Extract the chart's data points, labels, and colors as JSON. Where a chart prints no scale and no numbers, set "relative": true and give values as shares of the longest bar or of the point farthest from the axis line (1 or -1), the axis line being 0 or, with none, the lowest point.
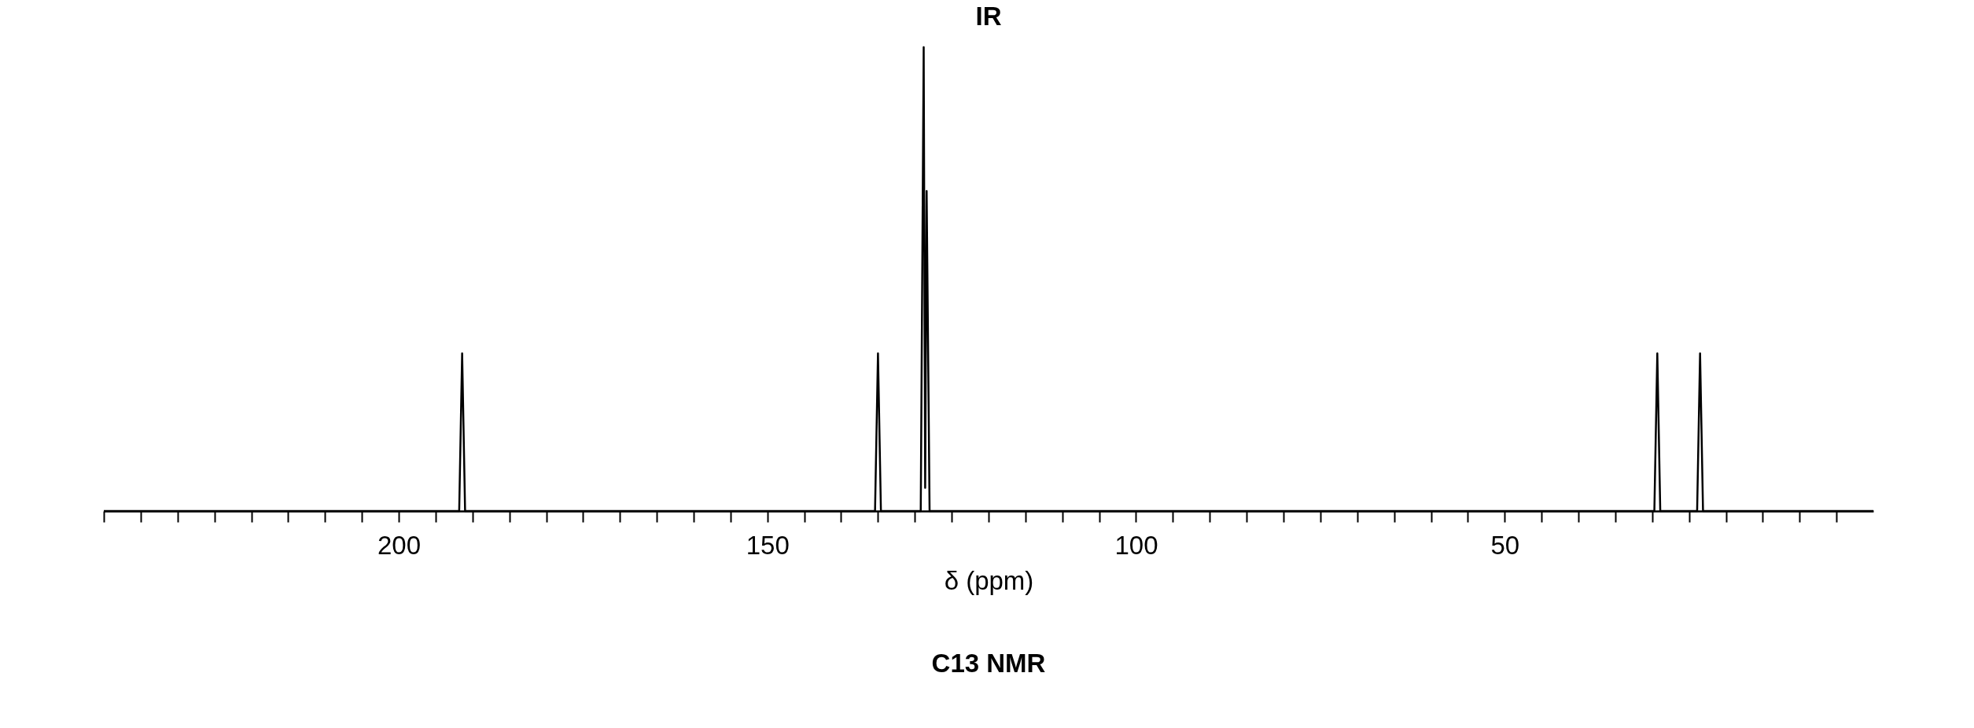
{
  "chart_data": {
    "type": "line",
    "title": "IR",
    "xlabel": "δ (ppm)",
    "annotations": [
      "C13 NMR"
    ],
    "relative": true,
    "grid": false,
    "marker": "none",
    "line_style": "solid",
    "xlim": [
      240,
      0
    ],
    "xticks": [
      {
        "value": 240,
        "label": null
      },
      {
        "value": 235,
        "label": null
      },
      {
        "value": 230,
        "label": null
      },
      {
        "value": 225,
        "label": null
      },
      {
        "value": 220,
        "label": null
      },
      {
        "value": 215,
        "label": null
      },
      {
        "value": 210,
        "label": null
      },
      {
        "value": 205,
        "label": null
      },
      200,
      {
        "value": 195,
        "label": null
      },
      {
        "value": 190,
        "label": null
      },
      {
        "value": 185,
        "label": null
      },
      {
        "value": 180,
        "label": null
      },
      {
        "value": 175,
        "label": null
      },
      {
        "value": 170,
        "label": null
      },
      {
        "value": 165,
        "label": null
      },
      {
        "value": 160,
        "label": null
      },
      {
        "value": 155,
        "label": null
      },
      150,
      {
        "value": 145,
        "label": null
      },
      {
        "value": 140,
        "label": null
      },
      {
        "value": 135,
        "label": null
      },
      {
        "value": 130,
        "label": null
      },
      {
        "value": 125,
        "label": null
      },
      {
        "value": 120,
        "label": null
      },
      {
        "value": 115,
        "label": null
      },
      {
        "value": 110,
        "label": null
      },
      {
        "value": 105,
        "label": null
      },
      100,
      {
        "value": 95,
        "label": null
      },
      {
        "value": 90,
        "label": null
      },
      {
        "value": 85,
        "label": null
      },
      {
        "value": 80,
        "label": null
      },
      {
        "value": 75,
        "label": null
      },
      {
        "value": 70,
        "label": null
      },
      {
        "value": 65,
        "label": null
      },
      {
        "value": 60,
        "label": null
      },
      {
        "value": 55,
        "label": null
      },
      50,
      {
        "value": 45,
        "label": null
      },
      {
        "value": 40,
        "label": null
      },
      {
        "value": 35,
        "label": null
      },
      {
        "value": 30,
        "label": null
      },
      {
        "value": 25,
        "label": null
      },
      {
        "value": 20,
        "label": null
      },
      {
        "value": 15,
        "label": null
      },
      {
        "value": 10,
        "label": null
      },
      {
        "value": 5,
        "label": null
      }
    ],
    "series": [
      {
        "color": "#000000",
        "x": [
          240,
          191.8,
          191.4,
          191.0,
          135.4,
          135.0,
          134.6,
          129.2,
          128.8,
          128.6,
          128.4,
          128.0,
          29.7,
          29.3,
          28.9,
          23.9,
          23.5,
          23.1,
          0
        ],
        "values": [
          0,
          0,
          0.34,
          0,
          0,
          0.34,
          0,
          0,
          1,
          0.05,
          0.69,
          0,
          0,
          0.34,
          0,
          0,
          0.34,
          0,
          0
        ]
      }
    ]
  }
}
